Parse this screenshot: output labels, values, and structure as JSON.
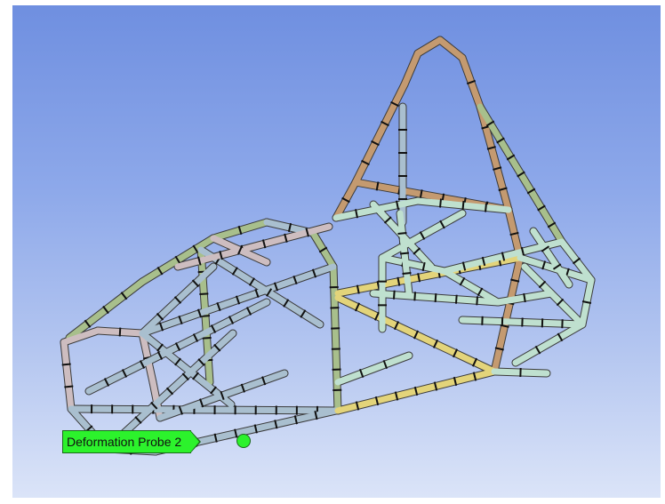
{
  "viewport": {
    "colors": {
      "background_top": "#6f8fe0",
      "background_bottom": "#dbe4f8",
      "tube_gray_blue": "#a9bfcf",
      "tube_green": "#a8bf8c",
      "tube_tan": "#c49a70",
      "tube_yellow": "#e3d47a",
      "tube_mint": "#bfe0cf",
      "tube_pink": "#cdbdc0"
    }
  },
  "probe": {
    "label": "Deformation Probe 2",
    "label_color": "#2cf22c",
    "icon": "probe-marker-icon"
  }
}
